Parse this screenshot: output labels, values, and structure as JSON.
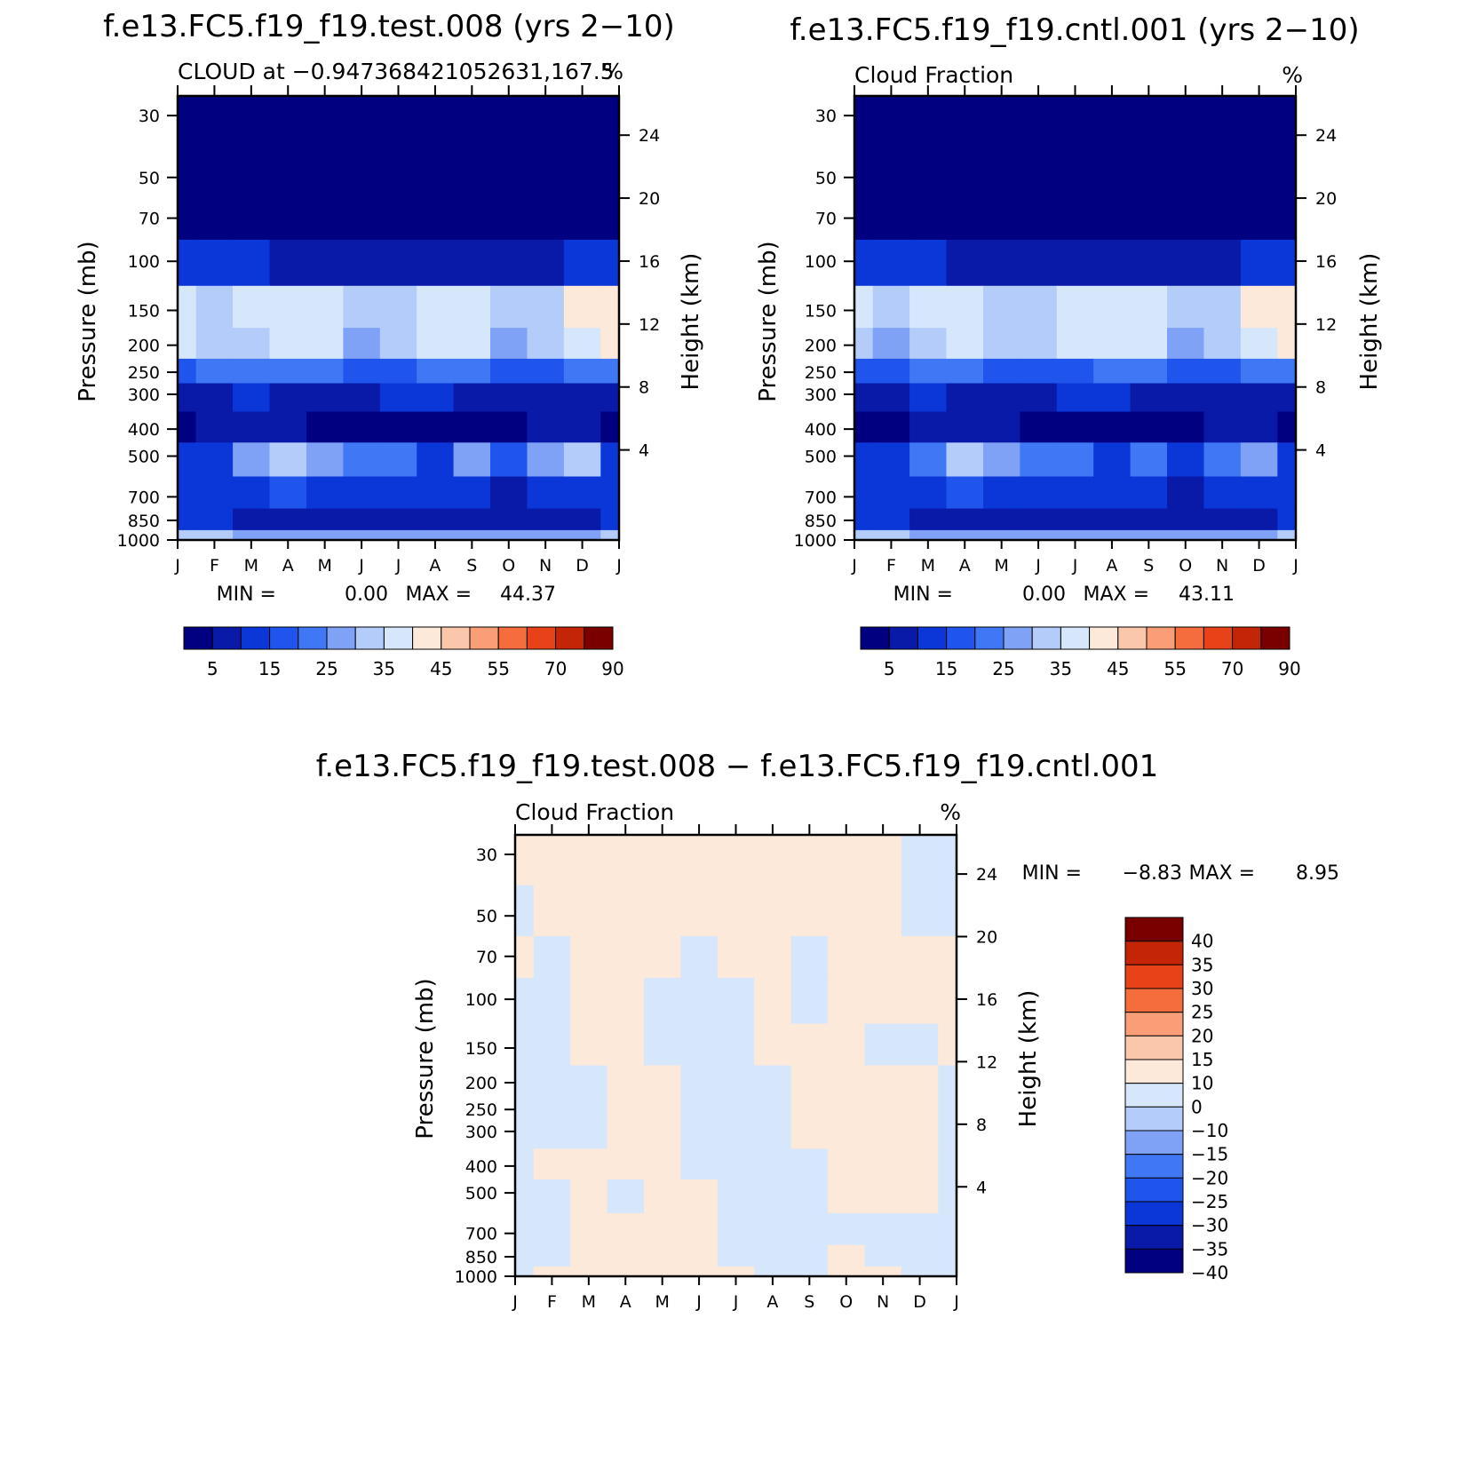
{
  "colors": {
    "abs_scale": [
      "#000080",
      "#0a1aa8",
      "#0b37d8",
      "#1f55ec",
      "#3f77f4",
      "#7fa2f6",
      "#b4ccfa",
      "#d7e7fb",
      "#fde9da",
      "#fbc7ab",
      "#f99e76",
      "#f56d3d",
      "#e84318",
      "#c42507",
      "#7a0000"
    ],
    "diff_scale": [
      "#000080",
      "#0a1aa8",
      "#0b37d8",
      "#1f55ec",
      "#3f77f4",
      "#7fa2f6",
      "#b4ccfa",
      "#d7e7fb",
      "#fde9da",
      "#fbc7ab",
      "#f99e76",
      "#f56d3d",
      "#e84318",
      "#c42507",
      "#7a0000"
    ]
  },
  "chart_data": [
    {
      "type": "heatmap",
      "title": "f.e13.FC5.f19_f19.test.008 (yrs 2−10)",
      "subtitle_left": "CLOUD at −0.947368421052631,167.5",
      "subtitle_right": "%",
      "ylabel": "Pressure (mb)",
      "y2label": "Height (km)",
      "x_ticks": [
        "J",
        "F",
        "M",
        "A",
        "M",
        "J",
        "J",
        "A",
        "S",
        "O",
        "N",
        "D",
        "J"
      ],
      "y_ticks": [
        "30",
        "50",
        "70",
        "100",
        "150",
        "200",
        "250",
        "300",
        "400",
        "500",
        "700",
        "850",
        "1000"
      ],
      "y2_ticks": [
        "24",
        "20",
        "16",
        "12",
        "8",
        "4"
      ],
      "min_label": "MIN =",
      "min_value": "0.00",
      "max_label": "MAX =",
      "max_value": "44.37",
      "colorbar_labels": [
        "5",
        "15",
        "25",
        "35",
        "45",
        "55",
        "70",
        "90"
      ],
      "levels_hpa": [
        30,
        50,
        70,
        100,
        150,
        200,
        250,
        300,
        400,
        500,
        700,
        850,
        1000
      ],
      "months": [
        "Jan",
        "Feb",
        "Mar",
        "Apr",
        "May",
        "Jun",
        "Jul",
        "Aug",
        "Sep",
        "Oct",
        "Nov",
        "Dec",
        "Jan"
      ],
      "values": [
        [
          0,
          0,
          0,
          0,
          0,
          0,
          0,
          0,
          0,
          0,
          0,
          0,
          0
        ],
        [
          0,
          0,
          0,
          0,
          0,
          0,
          0,
          0,
          0,
          0,
          0,
          0,
          0
        ],
        [
          2,
          2,
          1,
          1,
          1,
          0.5,
          0.5,
          0.5,
          0.5,
          0.5,
          1,
          1,
          2
        ],
        [
          12,
          11,
          10,
          9,
          8,
          6,
          6,
          7,
          6,
          6,
          8,
          10,
          12
        ],
        [
          37,
          33,
          37,
          38,
          37,
          30,
          31,
          36,
          37,
          30,
          33,
          40,
          42
        ],
        [
          35,
          30,
          34,
          37,
          35,
          28,
          30,
          36,
          36,
          28,
          32,
          38,
          40
        ],
        [
          18,
          20,
          22,
          22,
          20,
          18,
          18,
          22,
          22,
          19,
          19,
          22,
          24
        ],
        [
          8,
          9,
          10,
          9,
          8,
          9,
          10,
          10,
          9,
          8,
          8,
          9,
          9
        ],
        [
          4,
          5,
          6,
          5,
          4,
          3,
          3,
          4,
          3,
          3,
          5,
          6,
          4
        ],
        [
          12,
          14,
          26,
          31,
          26,
          24,
          22,
          14,
          26,
          19,
          26,
          30,
          12
        ],
        [
          10,
          11,
          14,
          15,
          13,
          12,
          11,
          10,
          10,
          9,
          10,
          11,
          10
        ],
        [
          10,
          10,
          9,
          9,
          9,
          8,
          8,
          8,
          7,
          6,
          8,
          9,
          10
        ],
        [
          30,
          30,
          28,
          28,
          28,
          26,
          26,
          26,
          25,
          25,
          27,
          28,
          30
        ]
      ]
    },
    {
      "type": "heatmap",
      "title": "f.e13.FC5.f19_f19.cntl.001 (yrs 2−10)",
      "subtitle_left": "Cloud Fraction",
      "subtitle_right": "%",
      "ylabel": "Pressure (mb)",
      "y2label": "Height (km)",
      "x_ticks": [
        "J",
        "F",
        "M",
        "A",
        "M",
        "J",
        "J",
        "A",
        "S",
        "O",
        "N",
        "D",
        "J"
      ],
      "y_ticks": [
        "30",
        "50",
        "70",
        "100",
        "150",
        "200",
        "250",
        "300",
        "400",
        "500",
        "700",
        "850",
        "1000"
      ],
      "y2_ticks": [
        "24",
        "20",
        "16",
        "12",
        "8",
        "4"
      ],
      "min_label": "MIN =",
      "min_value": "0.00",
      "max_label": "MAX =",
      "max_value": "43.11",
      "colorbar_labels": [
        "5",
        "15",
        "25",
        "35",
        "45",
        "55",
        "70",
        "90"
      ],
      "levels_hpa": [
        30,
        50,
        70,
        100,
        150,
        200,
        250,
        300,
        400,
        500,
        700,
        850,
        1000
      ],
      "months": [
        "Jan",
        "Feb",
        "Mar",
        "Apr",
        "May",
        "Jun",
        "Jul",
        "Aug",
        "Sep",
        "Oct",
        "Nov",
        "Dec",
        "Jan"
      ],
      "values": [
        [
          0,
          0,
          0,
          0,
          0,
          0,
          0,
          0,
          0,
          0,
          0,
          0,
          0
        ],
        [
          0,
          0,
          0,
          0,
          0,
          0,
          0,
          0,
          0,
          0,
          0,
          0,
          0
        ],
        [
          2,
          2,
          1,
          1,
          1,
          0.5,
          0.5,
          0.5,
          0.5,
          0.5,
          1,
          1,
          2
        ],
        [
          12,
          11,
          10,
          9,
          8,
          6,
          6,
          7,
          6,
          6,
          8,
          10,
          12
        ],
        [
          36,
          32,
          36,
          37,
          32,
          33,
          36,
          37,
          37,
          30,
          33,
          40,
          42
        ],
        [
          34,
          29,
          33,
          36,
          31,
          31,
          35,
          36,
          35,
          28,
          32,
          38,
          40
        ],
        [
          17,
          19,
          21,
          21,
          19,
          19,
          19,
          21,
          21,
          18,
          19,
          22,
          24
        ],
        [
          8,
          9,
          10,
          9,
          8,
          9,
          10,
          10,
          9,
          8,
          8,
          9,
          9
        ],
        [
          4,
          3,
          5,
          5,
          5,
          3,
          3,
          4,
          4,
          3,
          5,
          6,
          4
        ],
        [
          12,
          14,
          24,
          31,
          25,
          22,
          20,
          14,
          20,
          14,
          22,
          28,
          12
        ],
        [
          10,
          11,
          14,
          15,
          13,
          12,
          11,
          10,
          10,
          9,
          10,
          11,
          10
        ],
        [
          10,
          10,
          9,
          9,
          9,
          8,
          8,
          8,
          7,
          6,
          8,
          9,
          10
        ],
        [
          30,
          30,
          28,
          28,
          28,
          26,
          26,
          26,
          25,
          25,
          27,
          28,
          30
        ]
      ]
    },
    {
      "type": "heatmap",
      "title": "f.e13.FC5.f19_f19.test.008 − f.e13.FC5.f19_f19.cntl.001",
      "subtitle_left": "Cloud Fraction",
      "subtitle_right": "%",
      "ylabel": "Pressure (mb)",
      "y2label": "Height (km)",
      "x_ticks": [
        "J",
        "F",
        "M",
        "A",
        "M",
        "J",
        "J",
        "A",
        "S",
        "O",
        "N",
        "D",
        "J"
      ],
      "y_ticks": [
        "30",
        "50",
        "70",
        "100",
        "150",
        "200",
        "250",
        "300",
        "400",
        "500",
        "700",
        "850",
        "1000"
      ],
      "y2_ticks": [
        "24",
        "20",
        "16",
        "12",
        "8",
        "4"
      ],
      "min_label": "MIN =",
      "min_value": "−8.83",
      "max_label": "MAX =",
      "max_value": "8.95",
      "colorbar_labels": [
        "40",
        "35",
        "30",
        "25",
        "20",
        "15",
        "10",
        "0",
        "−10",
        "−15",
        "−20",
        "−25",
        "−30",
        "−35",
        "−40"
      ],
      "levels_hpa": [
        30,
        50,
        70,
        100,
        150,
        200,
        250,
        300,
        400,
        500,
        700,
        850,
        1000
      ],
      "months": [
        "Jan",
        "Feb",
        "Mar",
        "Apr",
        "May",
        "Jun",
        "Jul",
        "Aug",
        "Sep",
        "Oct",
        "Nov",
        "Dec",
        "Jan"
      ],
      "values": [
        [
          1,
          1,
          1,
          1,
          1,
          1,
          1,
          1,
          1,
          1,
          1,
          -1,
          -1
        ],
        [
          -1,
          1,
          1,
          1,
          1,
          1,
          1,
          1,
          1,
          1,
          1,
          -1,
          -1
        ],
        [
          1,
          -1,
          1,
          1,
          1,
          -1,
          1,
          1,
          -1,
          1,
          1,
          1,
          1
        ],
        [
          -1,
          -1,
          1,
          1,
          -1,
          -1,
          -1,
          1,
          -1,
          1,
          1,
          1,
          1
        ],
        [
          -1,
          -1,
          1,
          1,
          -1,
          -1,
          -1,
          1,
          1,
          1,
          -1,
          -1,
          1
        ],
        [
          -1,
          -1,
          -1,
          1,
          1,
          -1,
          -1,
          -1,
          1,
          1,
          1,
          1,
          -1
        ],
        [
          -1,
          -1,
          -1,
          1,
          1,
          -1,
          -1,
          -1,
          1,
          1,
          1,
          1,
          -1
        ],
        [
          -1,
          -1,
          -1,
          1,
          1,
          -1,
          -1,
          -1,
          1,
          1,
          1,
          1,
          -1
        ],
        [
          -1,
          1,
          1,
          1,
          1,
          -1,
          -1,
          -1,
          -1,
          1,
          1,
          1,
          -1
        ],
        [
          -1,
          -1,
          1,
          -1,
          1,
          1,
          -1,
          -1,
          -1,
          1,
          1,
          1,
          -1
        ],
        [
          -1,
          -1,
          1,
          1,
          1,
          1,
          -1,
          -1,
          -1,
          -1,
          -1,
          -1,
          -1
        ],
        [
          -1,
          -1,
          1,
          1,
          1,
          1,
          -1,
          -1,
          -1,
          1,
          -1,
          -1,
          -1
        ],
        [
          -1,
          1,
          1,
          1,
          1,
          1,
          1,
          -1,
          -1,
          1,
          1,
          -1,
          -1
        ]
      ]
    }
  ]
}
